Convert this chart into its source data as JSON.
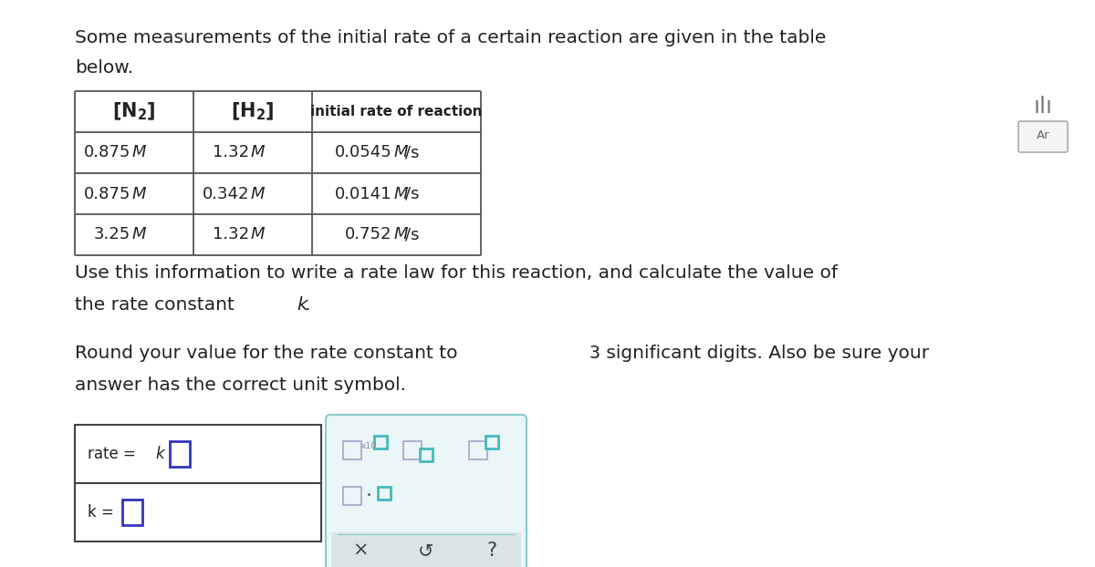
{
  "title_line1": "Some measurements of the initial rate of a certain reaction are given in the table",
  "title_line2": "below.",
  "col1_header": "[N₂]",
  "col2_header": "[H₂]",
  "col3_header": "initial rate of reaction",
  "table_rows": [
    [
      "0.875 M",
      "1.32 M",
      "0.0545 M/s"
    ],
    [
      "0.875 M",
      "0.342 M",
      "0.0141 M/s"
    ],
    [
      "3.25 M",
      "1.32 M",
      "0.752 M/s"
    ]
  ],
  "para1_line1": "Use this information to write a rate law for this reaction, and calculate the value of",
  "para1_line2a": "the rate constant ",
  "para1_italic": "k",
  "para1_period": ".",
  "para2_line1a": "Round your value for the rate constant to ",
  "para2_num": "3",
  "para2_line1b": " significant digits. Also be sure your",
  "para2_line2": "answer has the correct unit symbol.",
  "bg_color": "#ffffff",
  "text_color": "#222222",
  "table_line_color": "#555555",
  "input_box_color": "#3333bb",
  "answer_border": "#444444",
  "toolbar_bg": "#eaf6f8",
  "toolbar_border": "#88cccc",
  "teal_color": "#44bbbb",
  "gray_color": "#aaaaaa",
  "bottom_bar_color": "#d8e4e6",
  "icon_outline": "#aaaacc"
}
